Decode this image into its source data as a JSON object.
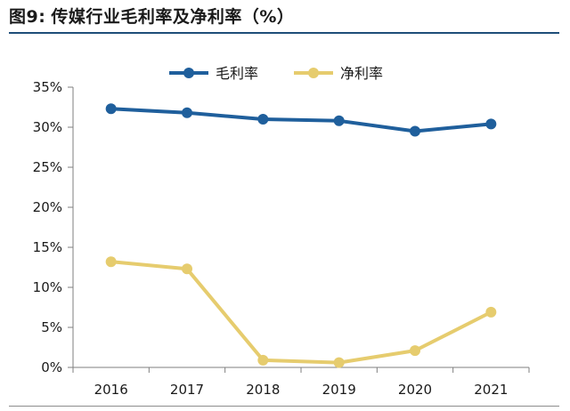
{
  "figure": {
    "label": "图9:",
    "caption": "传媒行业毛利率及净利率（%）"
  },
  "chart_data": {
    "type": "line",
    "title": "",
    "xlabel": "",
    "ylabel": "",
    "categories": [
      "2016",
      "2017",
      "2018",
      "2019",
      "2020",
      "2021"
    ],
    "ylim": [
      0,
      35
    ],
    "yticks": [
      0,
      5,
      10,
      15,
      20,
      25,
      30,
      35
    ],
    "ytick_labels": [
      "0%",
      "5%",
      "10%",
      "15%",
      "20%",
      "25%",
      "30%",
      "35%"
    ],
    "grid": false,
    "legend_position": "top-center",
    "series": [
      {
        "name": "毛利率",
        "color": "#1f5f9c",
        "values": [
          32.3,
          31.8,
          31.0,
          30.8,
          29.5,
          30.4
        ]
      },
      {
        "name": "净利率",
        "color": "#e6cc6e",
        "values": [
          13.2,
          12.3,
          0.9,
          0.6,
          2.1,
          6.9
        ]
      }
    ]
  }
}
